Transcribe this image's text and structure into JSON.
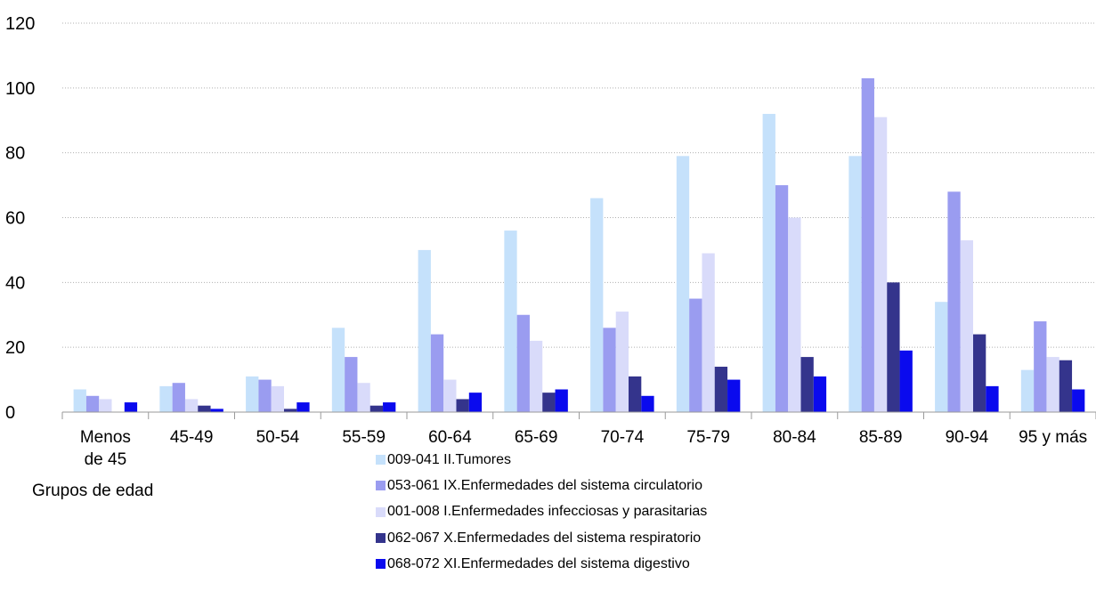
{
  "chart_data": {
    "type": "bar",
    "title": "",
    "xlabel": "Grupos de edad",
    "ylabel": "",
    "ylim": [
      0,
      120
    ],
    "yticks": [
      0,
      20,
      40,
      60,
      80,
      100,
      120
    ],
    "grid": "horizontal-dotted",
    "legend": "bottom-center",
    "categories": [
      [
        "Menos",
        "de 45"
      ],
      [
        "45-49"
      ],
      [
        "50-54"
      ],
      [
        "55-59"
      ],
      [
        "60-64"
      ],
      [
        "65-69"
      ],
      [
        "70-74"
      ],
      [
        "75-79"
      ],
      [
        "80-84"
      ],
      [
        "85-89"
      ],
      [
        "90-94"
      ],
      [
        "95 y más"
      ]
    ],
    "series": [
      {
        "name": "009-041 II.Tumores",
        "color": "#c5e1fb",
        "values": [
          7,
          8,
          11,
          26,
          50,
          56,
          66,
          79,
          92,
          79,
          34,
          13
        ]
      },
      {
        "name": "053-061 IX.Enfermedades del sistema circulatorio",
        "color": "#9a9cf0",
        "values": [
          5,
          9,
          10,
          17,
          24,
          30,
          26,
          35,
          70,
          103,
          68,
          28
        ]
      },
      {
        "name": "001-008 I.Enfermedades infecciosas y parasitarias",
        "color": "#d9dbfa",
        "values": [
          4,
          4,
          8,
          9,
          10,
          22,
          31,
          49,
          60,
          91,
          53,
          17
        ]
      },
      {
        "name": "062-067 X.Enfermedades del sistema respiratorio",
        "color": "#34348c",
        "values": [
          0,
          2,
          1,
          2,
          4,
          6,
          11,
          14,
          17,
          40,
          24,
          16
        ]
      },
      {
        "name": "068-072 XI.Enfermedades del sistema digestivo",
        "color": "#0a0aee",
        "values": [
          3,
          1,
          3,
          3,
          6,
          7,
          5,
          10,
          11,
          19,
          8,
          7
        ]
      }
    ]
  }
}
